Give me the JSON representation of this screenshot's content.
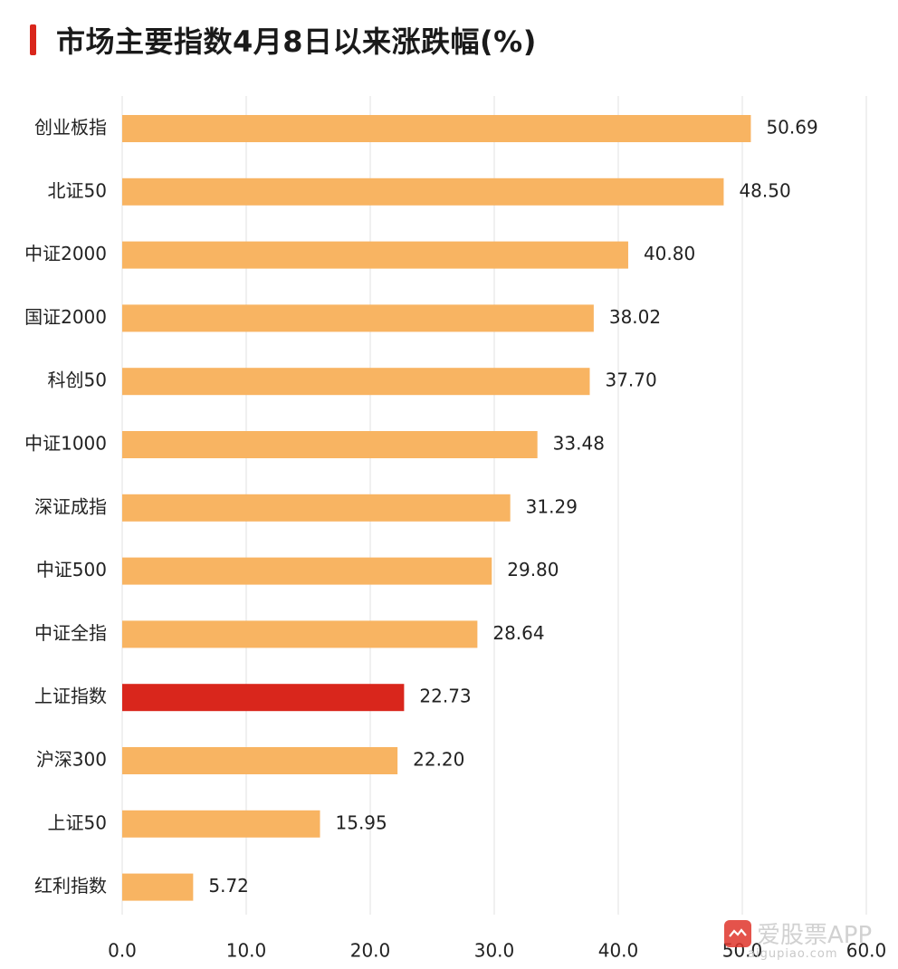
{
  "chart_data": {
    "type": "bar",
    "orientation": "horizontal",
    "title": "市场主要指数4月8日以来涨跌幅(%)",
    "categories": [
      "创业板指",
      "北证50",
      "中证2000",
      "国证2000",
      "科创50",
      "中证1000",
      "深证成指",
      "中证500",
      "中证全指",
      "上证指数",
      "沪深300",
      "上证50",
      "红利指数"
    ],
    "values": [
      50.69,
      48.5,
      40.8,
      38.02,
      37.7,
      33.48,
      31.29,
      29.8,
      28.64,
      22.73,
      22.2,
      15.95,
      5.72
    ],
    "value_labels": [
      "50.69",
      "48.50",
      "40.80",
      "38.02",
      "37.70",
      "33.48",
      "31.29",
      "29.80",
      "28.64",
      "22.73",
      "22.20",
      "15.95",
      "5.72"
    ],
    "highlight_category": "上证指数",
    "xlim": [
      0,
      60
    ],
    "xticks": [
      "0.0",
      "10.0",
      "20.0",
      "30.0",
      "40.0",
      "50.0",
      "60.0"
    ],
    "grid": "vertical",
    "colors": {
      "bar": "#f8b462",
      "highlight": "#d9261c",
      "title_accent": "#d9261c"
    }
  },
  "watermark": {
    "text": "爱股票APP",
    "url": "aigupiao.com"
  }
}
